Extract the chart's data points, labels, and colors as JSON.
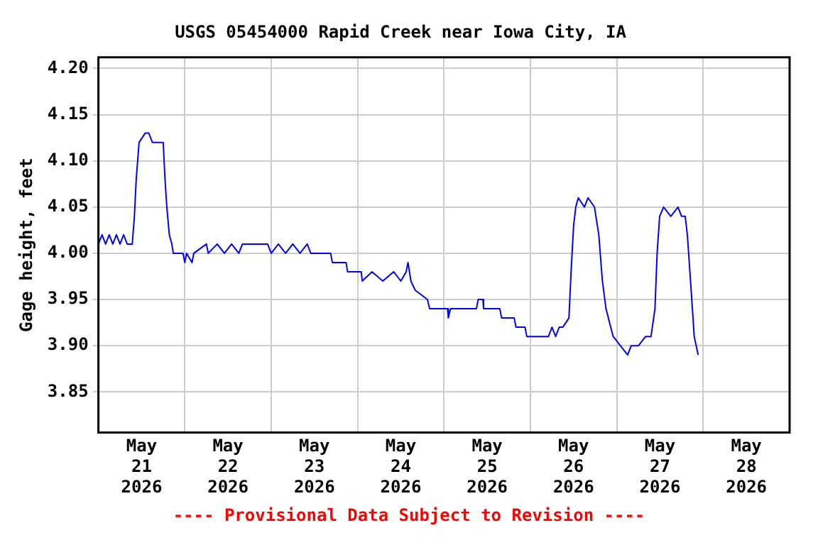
{
  "chart_data": {
    "type": "line",
    "title": "USGS 05454000 Rapid Creek near Iowa City, IA",
    "ylabel": "Gage height, feet",
    "annotations": [
      "---- Provisional Data Subject to Revision ----"
    ],
    "x": [
      "2026-05-21T00:00",
      "2026-05-21T01:00",
      "2026-05-21T02:00",
      "2026-05-21T03:00",
      "2026-05-21T04:00",
      "2026-05-21T05:00",
      "2026-05-21T06:00",
      "2026-05-21T07:00",
      "2026-05-21T08:00",
      "2026-05-21T09:24",
      "2026-05-21T10:00",
      "2026-05-21T10:30",
      "2026-05-21T11:18",
      "2026-05-21T13:00",
      "2026-05-21T14:00",
      "2026-05-21T15:00",
      "2026-05-21T18:00",
      "2026-05-21T18:30",
      "2026-05-21T19:00",
      "2026-05-21T19:42",
      "2026-05-21T20:24",
      "2026-05-21T20:48",
      "2026-05-21T23:30",
      "2026-05-22T00:00",
      "2026-05-22T00:30",
      "2026-05-22T02:00",
      "2026-05-22T02:30",
      "2026-05-22T06:00",
      "2026-05-22T06:30",
      "2026-05-22T09:00",
      "2026-05-22T11:00",
      "2026-05-22T13:00",
      "2026-05-22T15:00",
      "2026-05-22T16:00",
      "2026-05-22T23:00",
      "2026-05-23T00:00",
      "2026-05-23T02:00",
      "2026-05-23T04:00",
      "2026-05-23T06:00",
      "2026-05-23T08:00",
      "2026-05-23T10:00",
      "2026-05-23T11:00",
      "2026-05-23T16:30",
      "2026-05-23T17:00",
      "2026-05-23T20:48",
      "2026-05-23T21:12",
      "2026-05-24T01:00",
      "2026-05-24T01:18",
      "2026-05-24T04:00",
      "2026-05-24T07:00",
      "2026-05-24T10:00",
      "2026-05-24T12:00",
      "2026-05-24T13:30",
      "2026-05-24T14:00",
      "2026-05-24T14:48",
      "2026-05-24T16:00",
      "2026-05-24T19:24",
      "2026-05-24T20:00",
      "2026-05-25T01:00",
      "2026-05-25T01:12",
      "2026-05-25T01:48",
      "2026-05-25T09:00",
      "2026-05-25T09:30",
      "2026-05-25T10:48",
      "2026-05-25T11:00",
      "2026-05-25T15:30",
      "2026-05-25T16:00",
      "2026-05-25T19:30",
      "2026-05-25T20:00",
      "2026-05-25T22:30",
      "2026-05-25T23:00",
      "2026-05-26T05:00",
      "2026-05-26T06:00",
      "2026-05-26T07:00",
      "2026-05-26T08:00",
      "2026-05-26T09:00",
      "2026-05-26T10:42",
      "2026-05-26T11:18",
      "2026-05-26T12:00",
      "2026-05-26T12:36",
      "2026-05-26T13:18",
      "2026-05-26T15:00",
      "2026-05-26T16:00",
      "2026-05-26T17:48",
      "2026-05-26T19:00",
      "2026-05-26T20:00",
      "2026-05-26T21:00",
      "2026-05-26T22:18",
      "2026-05-26T23:00",
      "2026-05-27T01:00",
      "2026-05-27T03:00",
      "2026-05-27T04:00",
      "2026-05-27T06:00",
      "2026-05-27T08:00",
      "2026-05-27T09:30",
      "2026-05-27T10:36",
      "2026-05-27T11:12",
      "2026-05-27T11:54",
      "2026-05-27T13:00",
      "2026-05-27T15:00",
      "2026-05-27T17:00",
      "2026-05-27T18:00",
      "2026-05-27T19:00",
      "2026-05-27T19:36",
      "2026-05-27T20:18",
      "2026-05-27T21:00",
      "2026-05-27T21:30",
      "2026-05-27T22:36"
    ],
    "series": [
      {
        "color": "#0000ff",
        "values": [
          4.01,
          4.02,
          4.01,
          4.02,
          4.01,
          4.02,
          4.01,
          4.02,
          4.01,
          4.01,
          4.04,
          4.08,
          4.12,
          4.13,
          4.13,
          4.12,
          4.12,
          4.08,
          4.05,
          4.02,
          4.01,
          4.0,
          4.0,
          3.99,
          4.0,
          3.99,
          4.0,
          4.01,
          4.0,
          4.01,
          4.0,
          4.01,
          4.0,
          4.01,
          4.01,
          4.0,
          4.01,
          4.0,
          4.01,
          4.0,
          4.01,
          4.0,
          4.0,
          3.99,
          3.99,
          3.98,
          3.98,
          3.97,
          3.98,
          3.97,
          3.98,
          3.97,
          3.98,
          3.99,
          3.97,
          3.96,
          3.95,
          3.94,
          3.94,
          3.93,
          3.94,
          3.94,
          3.95,
          3.95,
          3.94,
          3.94,
          3.93,
          3.93,
          3.92,
          3.92,
          3.91,
          3.91,
          3.92,
          3.91,
          3.92,
          3.92,
          3.93,
          3.98,
          4.03,
          4.05,
          4.06,
          4.05,
          4.06,
          4.05,
          4.02,
          3.97,
          3.94,
          3.92,
          3.91,
          3.9,
          3.89,
          3.9,
          3.9,
          3.91,
          3.91,
          3.94,
          4.0,
          4.04,
          4.05,
          4.04,
          4.05,
          4.04,
          4.04,
          4.02,
          3.98,
          3.94,
          3.91,
          3.89
        ]
      }
    ],
    "xlim": [
      "2026-05-21T00:00",
      "2026-05-29T00:00"
    ],
    "xticks": [
      {
        "value": "2026-05-21T12:00",
        "label": "May\n21\n2026"
      },
      {
        "value": "2026-05-22T00:00",
        "label": null
      },
      {
        "value": "2026-05-22T12:00",
        "label": "May\n22\n2026"
      },
      {
        "value": "2026-05-23T00:00",
        "label": null
      },
      {
        "value": "2026-05-23T12:00",
        "label": "May\n23\n2026"
      },
      {
        "value": "2026-05-24T00:00",
        "label": null
      },
      {
        "value": "2026-05-24T12:00",
        "label": "May\n24\n2026"
      },
      {
        "value": "2026-05-25T00:00",
        "label": null
      },
      {
        "value": "2026-05-25T12:00",
        "label": "May\n25\n2026"
      },
      {
        "value": "2026-05-26T00:00",
        "label": null
      },
      {
        "value": "2026-05-26T12:00",
        "label": "May\n26\n2026"
      },
      {
        "value": "2026-05-27T00:00",
        "label": null
      },
      {
        "value": "2026-05-27T12:00",
        "label": "May\n27\n2026"
      },
      {
        "value": "2026-05-28T00:00",
        "label": null
      },
      {
        "value": "2026-05-28T12:00",
        "label": "May\n28\n2026"
      }
    ],
    "ylim": [
      3.806,
      4.212
    ],
    "yticks": [
      {
        "value": 3.85,
        "label": "3.85"
      },
      {
        "value": 3.9,
        "label": "3.90"
      },
      {
        "value": 3.95,
        "label": "3.95"
      },
      {
        "value": 4.0,
        "label": "4.00"
      },
      {
        "value": 4.05,
        "label": "4.05"
      },
      {
        "value": 4.1,
        "label": "4.10"
      },
      {
        "value": 4.15,
        "label": "4.15"
      },
      {
        "value": 4.2,
        "label": "4.20"
      }
    ],
    "grid": true
  }
}
